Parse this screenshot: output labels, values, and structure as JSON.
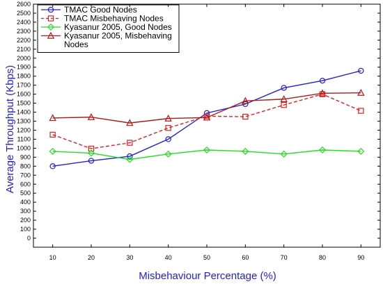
{
  "chart_data": {
    "type": "line",
    "title": "",
    "xlabel": "Misbehaviour Percentage (%)",
    "ylabel": "Average Throughput (Kbps)",
    "x": [
      10,
      20,
      30,
      40,
      50,
      60,
      70,
      80,
      90
    ],
    "xlim": [
      5,
      95
    ],
    "ylim": [
      -100,
      2600
    ],
    "yticks": [
      0,
      100,
      200,
      300,
      400,
      500,
      600,
      700,
      800,
      900,
      1000,
      1100,
      1200,
      1300,
      1400,
      1500,
      1600,
      1700,
      1800,
      1900,
      2000,
      2100,
      2200,
      2300,
      2400,
      2500,
      2600
    ],
    "grid": false,
    "legend": "top-left",
    "series": [
      {
        "name": "TMAC Good Nodes",
        "color": "#1f1fd6",
        "dash": "solid",
        "marker": "circle",
        "values": [
          800,
          860,
          910,
          1100,
          1390,
          1490,
          1670,
          1750,
          1860
        ]
      },
      {
        "name": "TMAC Misbehaving Nodes",
        "color": "#e02020",
        "dash": "dashed",
        "marker": "square",
        "values": [
          1150,
          995,
          1060,
          1225,
          1355,
          1350,
          1480,
          1600,
          1415
        ]
      },
      {
        "name": "Kyasanur 2005, Good Nodes",
        "color": "#22dd22",
        "dash": "solid",
        "marker": "diamond",
        "values": [
          965,
          945,
          875,
          935,
          980,
          965,
          935,
          980,
          965
        ]
      },
      {
        "name": "Kyasanur 2005, Misbehaving Nodes",
        "color": "#b01818",
        "dash": "solid",
        "marker": "triangle",
        "values": [
          1335,
          1345,
          1280,
          1330,
          1340,
          1525,
          1545,
          1610,
          1615
        ]
      }
    ]
  }
}
